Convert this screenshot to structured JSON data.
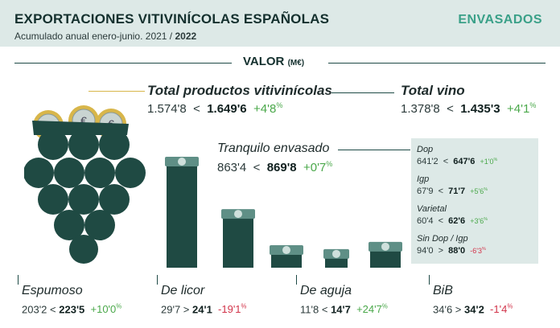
{
  "header": {
    "title": "EXPORTACIONES VITIVINÍCOLAS ESPAÑOLAS",
    "subtitle_prefix": "Acumulado anual enero-junio. 2021 / ",
    "subtitle_year": "2022",
    "tag": "ENVASADOS"
  },
  "section": {
    "label": "VALOR",
    "unit": "(M€)"
  },
  "colors": {
    "dark_green": "#1f4a43",
    "teal": "#3aa088",
    "positive": "#4aa84a",
    "negative": "#d2344a",
    "panel": "#dde9e7"
  },
  "icons": [
    "grape-cluster-icon",
    "euro-coin-icon",
    "banknote-stack-icon"
  ],
  "chart_data": {
    "type": "bar",
    "title": "VALOR (M€)",
    "summary": [
      {
        "label": "Total productos vitivinícolas",
        "v2021": "1.574'8",
        "cmp": "<",
        "v2022": "1.649'6",
        "change": "+4'8",
        "unit": "%",
        "sign": "pos"
      },
      {
        "label": "Total vino",
        "v2021": "1.378'8",
        "cmp": "<",
        "v2022": "1.435'3",
        "change": "+4'1",
        "unit": "%",
        "sign": "pos"
      },
      {
        "label": "Tranquilo envasado",
        "v2021": "863'4",
        "cmp": "<",
        "v2022": "869'8",
        "change": "+0'7",
        "unit": "%",
        "sign": "pos"
      }
    ],
    "tranquilo_breakdown": [
      {
        "label": "Dop",
        "v2021": "641'2",
        "cmp": "<",
        "v2022": "647'6",
        "change": "+1'0",
        "unit": "%",
        "sign": "pos"
      },
      {
        "label": "Igp",
        "v2021": "67'9",
        "cmp": "<",
        "v2022": "71'7",
        "change": "+5'6",
        "unit": "%",
        "sign": "pos"
      },
      {
        "label": "Varietal",
        "v2021": "60'4",
        "cmp": "<",
        "v2022": "62'6",
        "change": "+3'6",
        "unit": "%",
        "sign": "pos"
      },
      {
        "label": "Sin Dop / Igp",
        "v2021": "94'0",
        "cmp": ">",
        "v2022": "88'0",
        "change": "-6'3",
        "unit": "%",
        "sign": "neg"
      }
    ],
    "categories": [
      "Tranquilo envasado",
      "Espumoso",
      "De licor",
      "De aguja",
      "BiB"
    ],
    "values": [
      869.8,
      223.5,
      24.1,
      14.7,
      34.2
    ],
    "products": [
      {
        "label": "Espumoso",
        "v2021": "203'2",
        "cmp": "<",
        "v2022": "223'5",
        "change": "+10'0",
        "unit": "%",
        "sign": "pos"
      },
      {
        "label": "De licor",
        "v2021": "29'7",
        "cmp": ">",
        "v2022": "24'1",
        "change": "-19'1",
        "unit": "%",
        "sign": "neg"
      },
      {
        "label": "De aguja",
        "v2021": "11'8",
        "cmp": "<",
        "v2022": "14'7",
        "change": "+24'7",
        "unit": "%",
        "sign": "pos"
      },
      {
        "label": "BiB",
        "v2021": "34'6",
        "cmp": ">",
        "v2022": "34'2",
        "change": "-1'4",
        "unit": "%",
        "sign": "neg"
      }
    ]
  }
}
